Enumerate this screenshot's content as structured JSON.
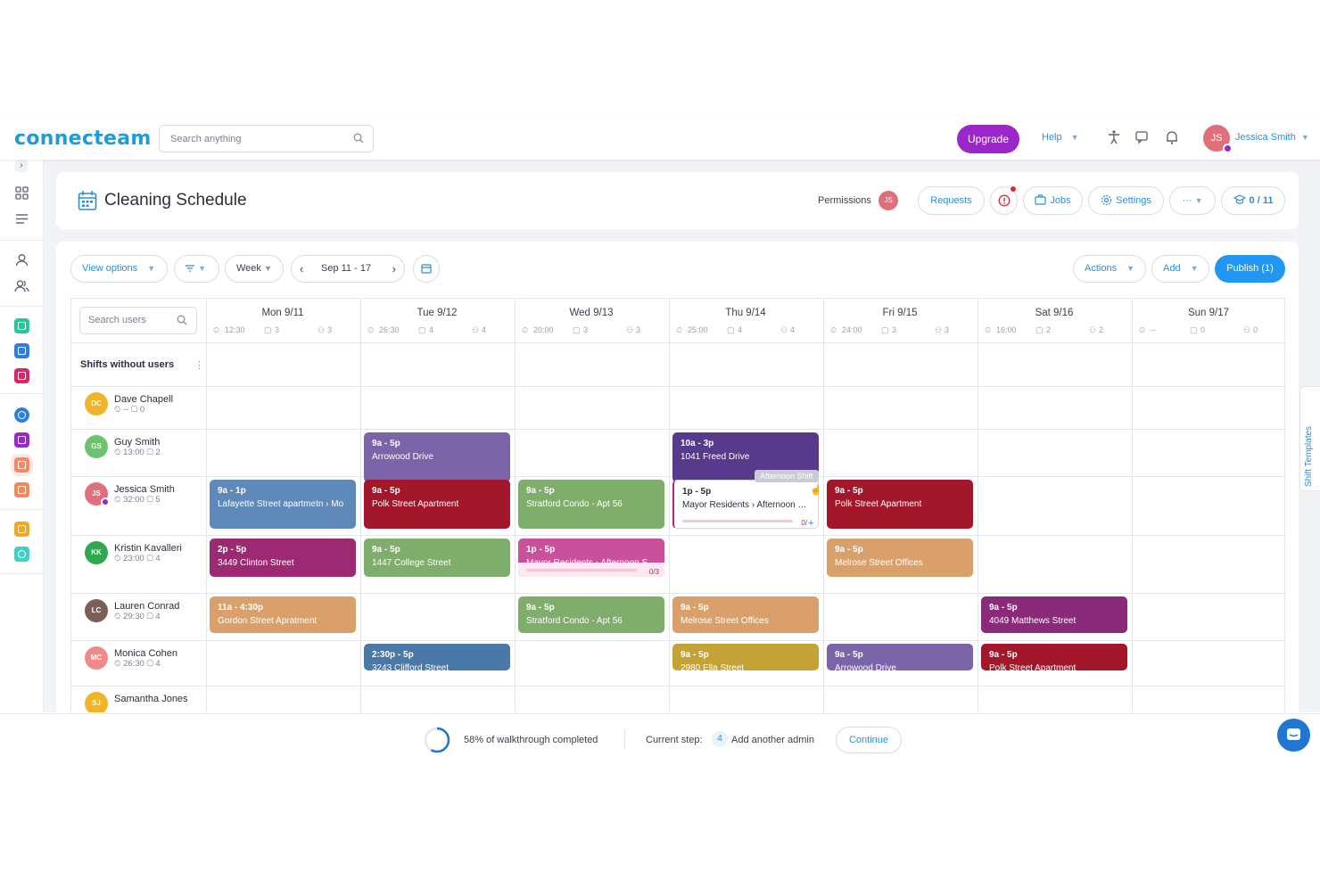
{
  "topbar": {
    "logo": "connecteam",
    "search_placeholder": "Search anything",
    "upgrade": "Upgrade",
    "help": "Help",
    "user_initials": "JS",
    "user_name": "Jessica Smith"
  },
  "header": {
    "title": "Cleaning Schedule",
    "permissions": "Permissions",
    "permissions_initials": "JS",
    "requests": "Requests",
    "jobs": "Jobs",
    "settings": "Settings",
    "more": "···",
    "counter": "0 / 11"
  },
  "toolbar": {
    "view_options": "View options",
    "week": "Week",
    "date_range": "Sep 11 - 17",
    "actions": "Actions",
    "add": "Add",
    "publish": "Publish (1)"
  },
  "grid": {
    "search_users_placeholder": "Search users",
    "shifts_without_users": "Shifts without users",
    "days": [
      {
        "label": "Mon 9/11",
        "hours": "12:30",
        "shifts": "3",
        "users": "3"
      },
      {
        "label": "Tue 9/12",
        "hours": "26:30",
        "shifts": "4",
        "users": "4"
      },
      {
        "label": "Wed 9/13",
        "hours": "20:00",
        "shifts": "3",
        "users": "3"
      },
      {
        "label": "Thu 9/14",
        "hours": "25:00",
        "shifts": "4",
        "users": "4"
      },
      {
        "label": "Fri 9/15",
        "hours": "24:00",
        "shifts": "3",
        "users": "3"
      },
      {
        "label": "Sat 9/16",
        "hours": "16:00",
        "shifts": "2",
        "users": "2"
      },
      {
        "label": "Sun 9/17",
        "hours": "--",
        "shifts": "0",
        "users": "0"
      }
    ],
    "users": [
      {
        "initials": "DC",
        "name": "Dave Chapell",
        "hours": "--",
        "shifts": "0",
        "color": "#f0b429"
      },
      {
        "initials": "GS",
        "name": "Guy Smith",
        "hours": "13:00",
        "shifts": "2",
        "color": "#6cc26f"
      },
      {
        "initials": "JS",
        "name": "Jessica Smith",
        "hours": "32:00",
        "shifts": "5",
        "color": "#e06f7a"
      },
      {
        "initials": "KK",
        "name": "Kristin Kavalleri",
        "hours": "23:00",
        "shifts": "4",
        "color": "#2fa84f"
      },
      {
        "initials": "LC",
        "name": "Lauren Conrad",
        "hours": "29:30",
        "shifts": "4",
        "color": "#7b5e57"
      },
      {
        "initials": "MC",
        "name": "Monica Cohen",
        "hours": "26:30",
        "shifts": "4",
        "color": "#f08a8a"
      },
      {
        "initials": "SJ",
        "name": "Samantha Jones",
        "hours": "",
        "shifts": "",
        "color": "#f0b429"
      }
    ],
    "shifts": [
      {
        "row": 1,
        "day": 1,
        "time": "9a - 5p",
        "location": "Arrowood Drive",
        "color": "#7b64a8"
      },
      {
        "row": 1,
        "day": 3,
        "time": "10a - 3p",
        "location": "1041 Freed Drive",
        "color": "#583a8c"
      },
      {
        "row": 2,
        "day": 0,
        "time": "9a - 1p",
        "location": "Lafayette Street apartmetn › Mo",
        "color": "#5f89b9"
      },
      {
        "row": 2,
        "day": 1,
        "time": "9a - 5p",
        "location": "Polk Street Apartment",
        "color": "#a3172a"
      },
      {
        "row": 2,
        "day": 2,
        "time": "9a - 5p",
        "location": "Stratford Condo - Apt 56",
        "color": "#7fad6b"
      },
      {
        "row": 2,
        "day": 3,
        "time": "1p - 5p",
        "location": "Mayor Residents › Afternoon S...",
        "color": "white"
      },
      {
        "row": 2,
        "day": 4,
        "time": "9a - 5p",
        "location": "Polk Street Apartment",
        "color": "#a3172a"
      },
      {
        "row": 3,
        "day": 0,
        "time": "2p - 5p",
        "location": "3449 Clinton Street",
        "color": "#9c2a72"
      },
      {
        "row": 3,
        "day": 1,
        "time": "9a - 5p",
        "location": "1447 College Street",
        "color": "#7fad6b"
      },
      {
        "row": 3,
        "day": 2,
        "time": "1p - 5p",
        "location": "Mayor Residents › Afternoon S...",
        "color": "#c9509a"
      },
      {
        "row": 3,
        "day": 4,
        "time": "9a - 5p",
        "location": "Melrose Street Offices",
        "color": "#d9a06b"
      },
      {
        "row": 4,
        "day": 0,
        "time": "11a - 4:30p",
        "location": "Gordon Street Apratment",
        "color": "#d9a06b"
      },
      {
        "row": 4,
        "day": 2,
        "time": "9a - 5p",
        "location": "Stratford Condo - Apt 56",
        "color": "#7fad6b"
      },
      {
        "row": 4,
        "day": 3,
        "time": "9a - 5p",
        "location": "Melrose Street Offices",
        "color": "#d9a06b"
      },
      {
        "row": 4,
        "day": 5,
        "time": "9a - 5p",
        "location": "4049 Matthews Street",
        "color": "#8a2a78"
      },
      {
        "row": 5,
        "day": 1,
        "time": "2:30p - 5p",
        "location": "3243 Clifford Street",
        "color": "#4a79a8"
      },
      {
        "row": 5,
        "day": 3,
        "time": "9a - 5p",
        "location": "2980 Ella Street",
        "color": "#c4a236"
      },
      {
        "row": 5,
        "day": 4,
        "time": "9a - 5p",
        "location": "Arrowood Drive",
        "color": "#7b64a8"
      },
      {
        "row": 5,
        "day": 5,
        "time": "9a - 5p",
        "location": "Polk Street Apartment",
        "color": "#a3172a"
      }
    ],
    "tooltip": "Afternoon Shift",
    "progress_white": "0/",
    "progress_pink": "0/3"
  },
  "side_tab": "Shift Templates",
  "footer": {
    "walkthrough": "58% of walkthrough completed",
    "walkthrough_progress": 0.58,
    "current_step_label": "Current step:",
    "step_number": "4",
    "step_name": "Add another admin",
    "continue": "Continue"
  }
}
